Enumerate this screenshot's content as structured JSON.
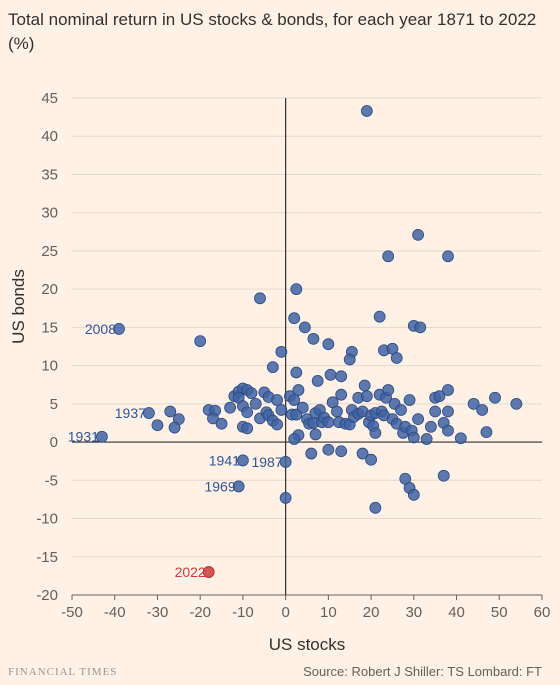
{
  "title": "Total nominal return in US stocks & bonds, for each year 1871 to 2022 (%)",
  "footer": {
    "brand": "FINANCIAL TIMES",
    "source": "Source: Robert J Shiller: TS Lombard: FT"
  },
  "chart_data": {
    "type": "scatter",
    "title": "Total nominal return in US stocks & bonds, for each year 1871 to 2022 (%)",
    "xlabel": "US stocks",
    "ylabel": "US bonds",
    "xlim": [
      -50,
      60
    ],
    "ylim": [
      -20,
      45
    ],
    "xticks": [
      -50,
      -40,
      -30,
      -20,
      -10,
      0,
      10,
      20,
      30,
      40,
      50,
      60
    ],
    "yticks": [
      -20,
      -15,
      -10,
      -5,
      0,
      5,
      10,
      15,
      20,
      25,
      30,
      35,
      40,
      45
    ],
    "grid": "horizontal",
    "point_color": "#3f63a3",
    "highlight_color": "#cc3a3a",
    "labeled_points": [
      {
        "label": "2008",
        "x": -39,
        "y": 14.8,
        "color": "#3f63a3"
      },
      {
        "label": "1937",
        "x": -32,
        "y": 3.8,
        "color": "#3f63a3"
      },
      {
        "label": "1931",
        "x": -43,
        "y": 0.7,
        "color": "#3f63a3"
      },
      {
        "label": "1941",
        "x": -10,
        "y": -2.4,
        "color": "#3f63a3"
      },
      {
        "label": "1987",
        "x": 0,
        "y": -2.6,
        "color": "#3f63a3"
      },
      {
        "label": "1969",
        "x": -11,
        "y": -5.8,
        "color": "#3f63a3"
      },
      {
        "label": "2022",
        "x": -18,
        "y": -17,
        "color": "#cc3a3a"
      }
    ],
    "points": [
      [
        19,
        43.3
      ],
      [
        31,
        27.1
      ],
      [
        24,
        24.3
      ],
      [
        38,
        24.3
      ],
      [
        -6,
        18.8
      ],
      [
        2.5,
        20
      ],
      [
        -20,
        13.2
      ],
      [
        2,
        16.2
      ],
      [
        22,
        16.4
      ],
      [
        30,
        15.2
      ],
      [
        31.5,
        15
      ],
      [
        4.5,
        15
      ],
      [
        6.5,
        13.5
      ],
      [
        10,
        12.8
      ],
      [
        15.5,
        11.8
      ],
      [
        15,
        10.8
      ],
      [
        -1,
        11.8
      ],
      [
        -3,
        9.8
      ],
      [
        23,
        12
      ],
      [
        25,
        12.2
      ],
      [
        26,
        11
      ],
      [
        10.5,
        8.8
      ],
      [
        13,
        8.6
      ],
      [
        2.5,
        9.1
      ],
      [
        7.5,
        8
      ],
      [
        3,
        6.8
      ],
      [
        -27,
        4
      ],
      [
        -25,
        3
      ],
      [
        -26,
        1.9
      ],
      [
        -30,
        2.2
      ],
      [
        -18,
        4.2
      ],
      [
        -16.5,
        4.1
      ],
      [
        -17,
        3.1
      ],
      [
        -15,
        2.4
      ],
      [
        -13,
        4.5
      ],
      [
        -12,
        6
      ],
      [
        -11,
        6.6
      ],
      [
        -10,
        7
      ],
      [
        -9,
        6.8
      ],
      [
        -11,
        5.8
      ],
      [
        -10,
        4.7
      ],
      [
        -9,
        3.9
      ],
      [
        -10,
        2
      ],
      [
        -9,
        1.8
      ],
      [
        -8,
        6.4
      ],
      [
        -7,
        5
      ],
      [
        -6,
        3.1
      ],
      [
        -5,
        6.5
      ],
      [
        -4,
        5.9
      ],
      [
        -4.5,
        3.9
      ],
      [
        -4,
        3.5
      ],
      [
        -3,
        2.8
      ],
      [
        -2,
        5.5
      ],
      [
        -1,
        4.2
      ],
      [
        -2,
        2.3
      ],
      [
        1,
        6
      ],
      [
        2,
        5.5
      ],
      [
        1.5,
        3.6
      ],
      [
        2.5,
        3.6
      ],
      [
        3,
        0.9
      ],
      [
        2,
        0.4
      ],
      [
        4,
        4.5
      ],
      [
        5,
        3
      ],
      [
        5.5,
        2.4
      ],
      [
        6.5,
        2.5
      ],
      [
        7,
        3.8
      ],
      [
        7,
        1
      ],
      [
        8,
        4.2
      ],
      [
        8.5,
        2.6
      ],
      [
        9,
        3.2
      ],
      [
        10,
        2.6
      ],
      [
        11,
        5.2
      ],
      [
        12,
        4
      ],
      [
        12.5,
        2.6
      ],
      [
        13,
        6.2
      ],
      [
        14,
        2.4
      ],
      [
        15,
        2.3
      ],
      [
        15.5,
        4.2
      ],
      [
        16,
        3.3
      ],
      [
        17,
        3.7
      ],
      [
        17,
        5.8
      ],
      [
        18,
        4
      ],
      [
        18.5,
        7.4
      ],
      [
        19,
        6
      ],
      [
        19.5,
        2.6
      ],
      [
        20,
        3.5
      ],
      [
        20.5,
        2.1
      ],
      [
        21,
        3.8
      ],
      [
        21,
        1.2
      ],
      [
        22,
        6.2
      ],
      [
        22.5,
        4
      ],
      [
        23,
        3.5
      ],
      [
        23.5,
        5.8
      ],
      [
        24,
        6.8
      ],
      [
        25,
        3
      ],
      [
        25.5,
        5
      ],
      [
        26,
        2.4
      ],
      [
        27,
        4.2
      ],
      [
        27.5,
        1.2
      ],
      [
        28,
        2
      ],
      [
        29,
        5.5
      ],
      [
        29.5,
        1.5
      ],
      [
        30,
        0.6
      ],
      [
        31,
        3
      ],
      [
        33,
        0.4
      ],
      [
        34,
        2
      ],
      [
        35,
        4
      ],
      [
        35,
        5.8
      ],
      [
        36,
        6
      ],
      [
        37,
        2.5
      ],
      [
        38,
        4
      ],
      [
        38,
        6.8
      ],
      [
        38,
        1.5
      ],
      [
        41,
        0.5
      ],
      [
        44,
        5
      ],
      [
        46,
        4.2
      ],
      [
        47,
        1.3
      ],
      [
        49,
        5.8
      ],
      [
        54,
        5
      ],
      [
        6,
        -1.5
      ],
      [
        10,
        -1
      ],
      [
        13,
        -1.2
      ],
      [
        18,
        -1.5
      ],
      [
        20,
        -2.3
      ],
      [
        21,
        -8.6
      ],
      [
        28,
        -4.8
      ],
      [
        29,
        -6
      ],
      [
        30,
        -6.9
      ],
      [
        37,
        -4.4
      ],
      [
        0,
        -7.3
      ]
    ]
  }
}
